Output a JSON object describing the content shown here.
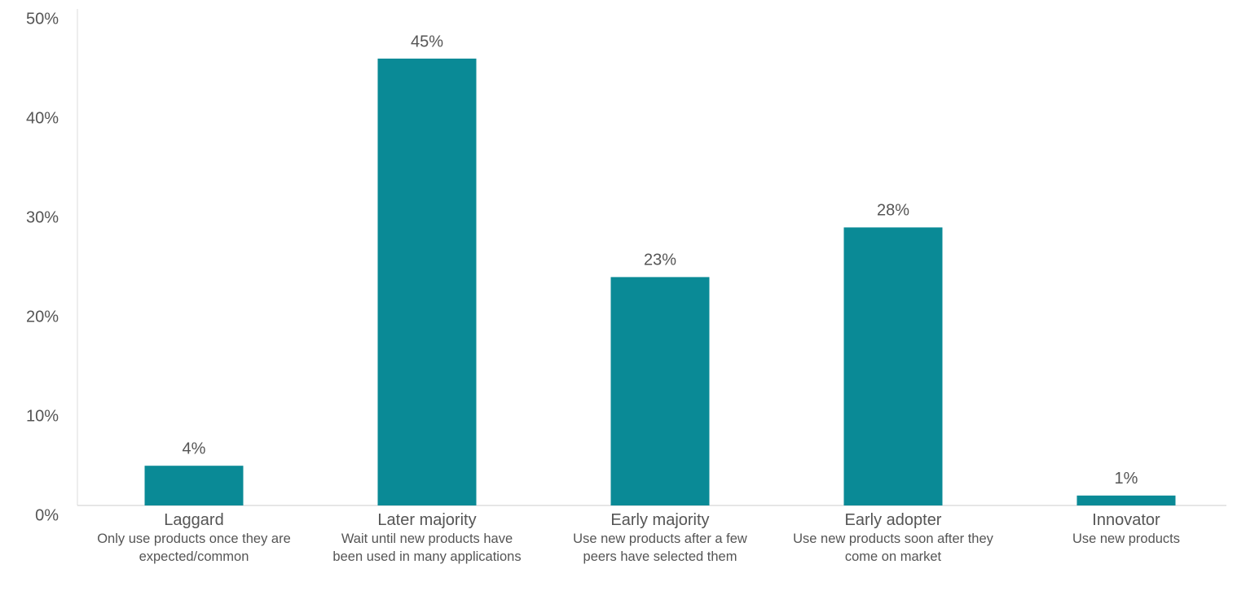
{
  "chart_data": {
    "type": "bar",
    "categories": [
      "Laggard",
      "Later majority",
      "Early majority",
      "Early adopter",
      "Innovator"
    ],
    "category_descriptions": [
      "Only use products once they are expected/common",
      "Wait until new products have been used in many applications",
      "Use new products after a few peers have selected them",
      "Use new products soon after they come on market",
      "Use new products"
    ],
    "values": [
      4,
      45,
      23,
      28,
      1
    ],
    "value_labels": [
      "4%",
      "45%",
      "23%",
      "28%",
      "1%"
    ],
    "color": "#0a8a96",
    "ylim": [
      0,
      50
    ],
    "yticks": [
      {
        "value": 0,
        "label": "0%"
      },
      {
        "value": 10,
        "label": "10%"
      },
      {
        "value": 20,
        "label": "20%"
      },
      {
        "value": 30,
        "label": "30%"
      },
      {
        "value": 40,
        "label": "40%"
      },
      {
        "value": 50,
        "label": "50%"
      }
    ],
    "grid": false
  }
}
